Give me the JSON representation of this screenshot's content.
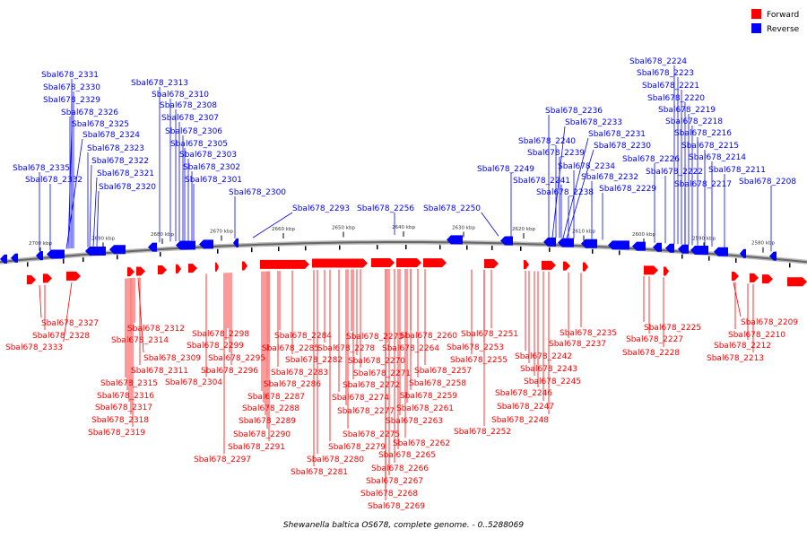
{
  "legend": {
    "items": [
      {
        "label": "Forward",
        "color": "#ff0000"
      },
      {
        "label": "Reverse",
        "color": "#0000ff"
      }
    ]
  },
  "caption": "Shewanella baltica OS678, complete genome. - 0..5288069",
  "ticks": [
    "2700 kbp",
    "2690 kbp",
    "2680 kbp",
    "2670 kbp",
    "2660 kbp",
    "2650 kbp",
    "2640 kbp",
    "2630 kbp",
    "2620 kbp",
    "2610 kbp",
    "2600 kbp",
    "2590 kbp",
    "2580 kbp"
  ],
  "reverse_labels": [
    "Sbal678_2331",
    "Sbal678_2330",
    "Sbal678_2329",
    "Sbal678_2326",
    "Sbal678_2325",
    "Sbal678_2324",
    "Sbal678_2323",
    "Sbal678_2322",
    "Sbal678_2321",
    "Sbal678_2320",
    "Sbal678_2335",
    "Sbal678_2332",
    "Sbal678_2313",
    "Sbal678_2310",
    "Sbal678_2308",
    "Sbal678_2307",
    "Sbal678_2306",
    "Sbal678_2305",
    "Sbal678_2303",
    "Sbal678_2302",
    "Sbal678_2301",
    "Sbal678_2300",
    "Sbal678_2293",
    "Sbal678_2256",
    "Sbal678_2250",
    "Sbal678_2249",
    "Sbal678_2236",
    "Sbal678_2233",
    "Sbal678_2231",
    "Sbal678_2240",
    "Sbal678_2230",
    "Sbal678_2239",
    "Sbal678_2234",
    "Sbal678_2241",
    "Sbal678_2232",
    "Sbal678_2238",
    "Sbal678_2229",
    "Sbal678_2224",
    "Sbal678_2223",
    "Sbal678_2221",
    "Sbal678_2220",
    "Sbal678_2219",
    "Sbal678_2218",
    "Sbal678_2216",
    "Sbal678_2215",
    "Sbal678_2226",
    "Sbal678_2214",
    "Sbal678_2222",
    "Sbal678_2211",
    "Sbal678_2217",
    "Sbal678_2208"
  ],
  "forward_labels": [
    "Sbal678_2327",
    "Sbal678_2328",
    "Sbal678_2333",
    "Sbal678_2312",
    "Sbal678_2314",
    "Sbal678_2309",
    "Sbal678_2311",
    "Sbal678_2315",
    "Sbal678_2316",
    "Sbal678_2317",
    "Sbal678_2318",
    "Sbal678_2319",
    "Sbal678_2298",
    "Sbal678_2299",
    "Sbal678_2295",
    "Sbal678_2296",
    "Sbal678_2304",
    "Sbal678_2297",
    "Sbal678_2284",
    "Sbal678_2285",
    "Sbal678_2282",
    "Sbal678_2283",
    "Sbal678_2286",
    "Sbal678_2287",
    "Sbal678_2288",
    "Sbal678_2289",
    "Sbal678_2290",
    "Sbal678_2291",
    "Sbal678_2273",
    "Sbal678_2278",
    "Sbal678_2270",
    "Sbal678_2271",
    "Sbal678_2272",
    "Sbal678_2274",
    "Sbal678_2277",
    "Sbal678_2275",
    "Sbal678_2279",
    "Sbal678_2280",
    "Sbal678_2281",
    "Sbal678_2260",
    "Sbal678_2264",
    "Sbal678_2257",
    "Sbal678_2258",
    "Sbal678_2259",
    "Sbal678_2261",
    "Sbal678_2263",
    "Sbal678_2262",
    "Sbal678_2265",
    "Sbal678_2266",
    "Sbal678_2267",
    "Sbal678_2268",
    "Sbal678_2269",
    "Sbal678_2251",
    "Sbal678_2253",
    "Sbal678_2255",
    "Sbal678_2252",
    "Sbal678_2242",
    "Sbal678_2243",
    "Sbal678_2245",
    "Sbal678_2246",
    "Sbal678_2247",
    "Sbal678_2248",
    "Sbal678_2235",
    "Sbal678_2237",
    "Sbal678_2225",
    "Sbal678_2227",
    "Sbal678_2228",
    "Sbal678_2209",
    "Sbal678_2210",
    "Sbal678_2212",
    "Sbal678_2213"
  ]
}
